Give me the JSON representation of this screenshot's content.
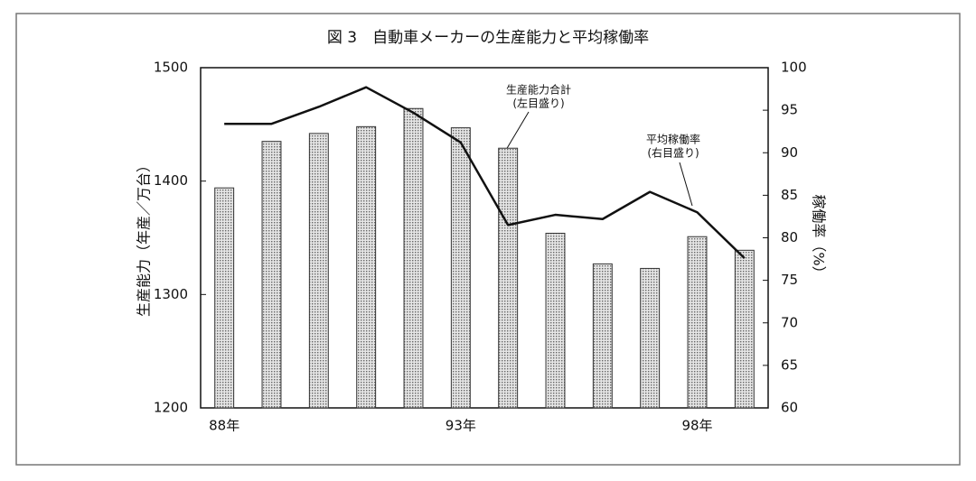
{
  "chart_data": {
    "type": "bar_line",
    "title": "図 3　自動車メーカーの生産能力と平均稼働率",
    "y_label": "生産能力（年産／万台）",
    "y2_label": "稼働率（%）",
    "categories": [
      "88年",
      null,
      null,
      null,
      null,
      "93年",
      null,
      null,
      null,
      null,
      "98年",
      null
    ],
    "series": [
      {
        "name": "生産能力合計",
        "note": "(左目盛り)",
        "kind": "bar",
        "color": "#b4b4b4",
        "values": [
          1394,
          1435,
          1442,
          1448,
          1464,
          1447,
          1429,
          1354,
          1327,
          1323,
          1351,
          1339
        ]
      },
      {
        "name": "平均稼働率",
        "note": "(右目盛り)",
        "kind": "line",
        "axis": "y2",
        "color": "#111111",
        "values": [
          93.4,
          93.4,
          95.4,
          97.7,
          94.7,
          91.2,
          81.5,
          82.7,
          82.2,
          85.4,
          83.0,
          77.6
        ]
      }
    ],
    "ylim": [
      1200,
      1500
    ],
    "yticks": [
      1200,
      1300,
      1400,
      1500
    ],
    "y2lim": [
      60,
      100
    ],
    "y2ticks": [
      60,
      65,
      70,
      75,
      80,
      85,
      90,
      95,
      100
    ],
    "grid": false
  }
}
